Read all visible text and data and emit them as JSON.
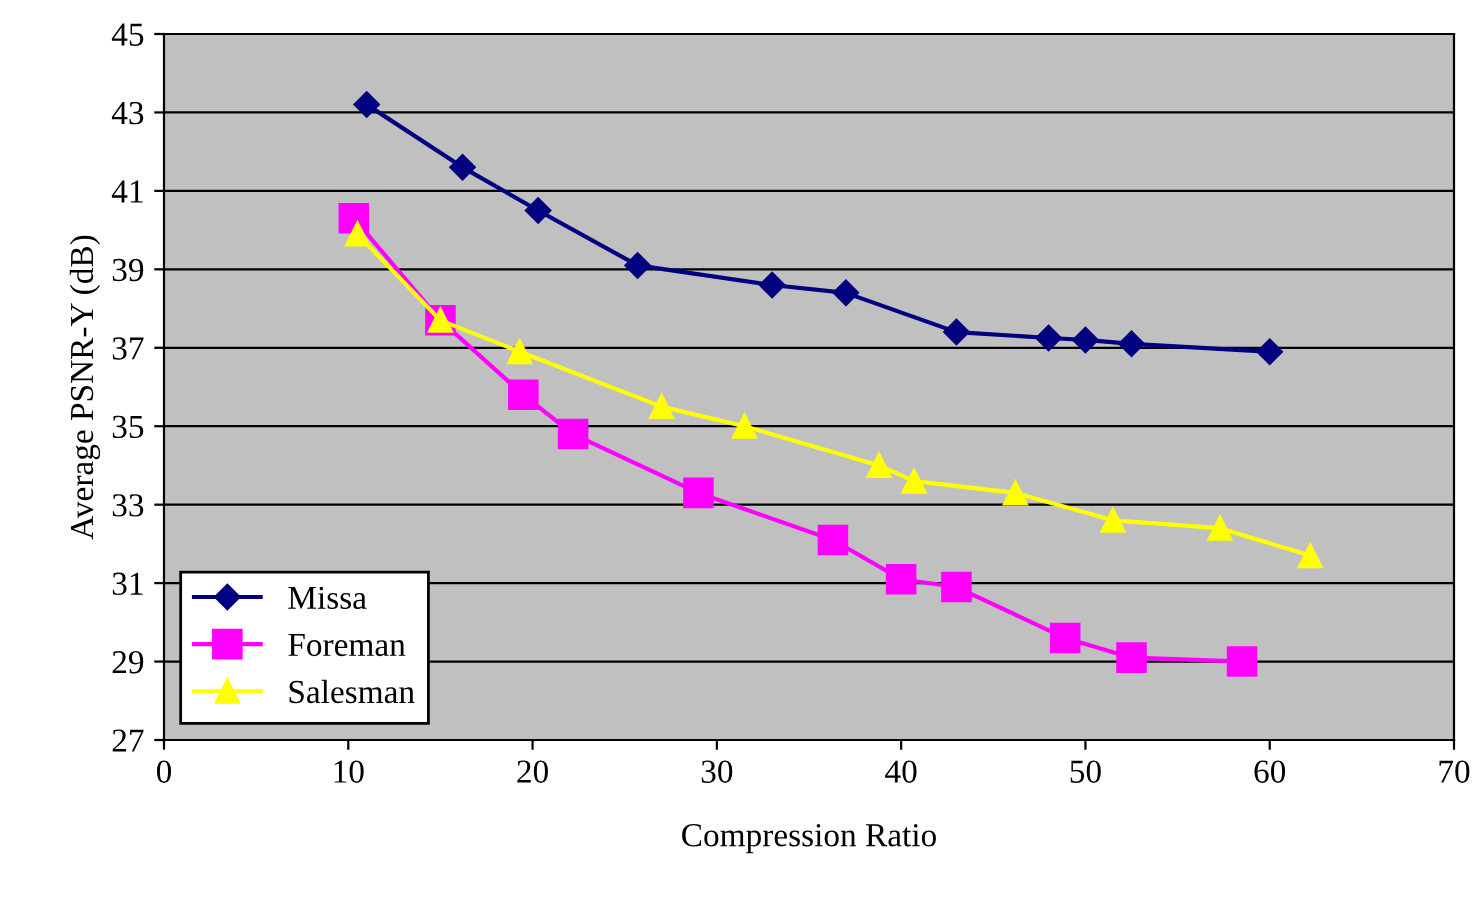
{
  "chart_data": {
    "type": "line",
    "xlabel": "Compression Ratio",
    "ylabel": "Average PSNR-Y (dB)",
    "xlim": [
      0,
      70
    ],
    "xticks": [
      0,
      10,
      20,
      30,
      40,
      50,
      60,
      70
    ],
    "ylim": [
      27,
      45
    ],
    "yticks": [
      27,
      29,
      31,
      33,
      35,
      37,
      39,
      41,
      43,
      45
    ],
    "grid": "y",
    "legend": "bottom left",
    "series": [
      {
        "name": "Missa",
        "color": "#000080",
        "marker": "diamond",
        "x": [
          11,
          16.2,
          20.3,
          25.7,
          33,
          37,
          43,
          48,
          50,
          52.5,
          60
        ],
        "values": [
          43.2,
          41.6,
          40.5,
          39.1,
          38.6,
          38.4,
          37.4,
          37.25,
          37.2,
          37.1,
          36.9
        ]
      },
      {
        "name": "Foreman",
        "color": "#ff00ff",
        "marker": "square",
        "x": [
          10.3,
          15,
          19.5,
          22.2,
          29,
          36.3,
          40,
          43,
          48.9,
          52.5,
          58.5
        ],
        "values": [
          40.3,
          37.7,
          35.8,
          34.8,
          33.3,
          32.1,
          31.1,
          30.9,
          29.6,
          29.1,
          29.0
        ]
      },
      {
        "name": "Salesman",
        "color": "#ffff00",
        "marker": "triangle",
        "x": [
          10.5,
          15,
          19.3,
          27,
          31.5,
          38.8,
          40.7,
          46.2,
          51.5,
          57.3,
          62.2
        ],
        "values": [
          39.9,
          37.7,
          36.9,
          35.5,
          35.0,
          34.0,
          33.6,
          33.3,
          32.6,
          32.4,
          31.7
        ]
      }
    ]
  }
}
